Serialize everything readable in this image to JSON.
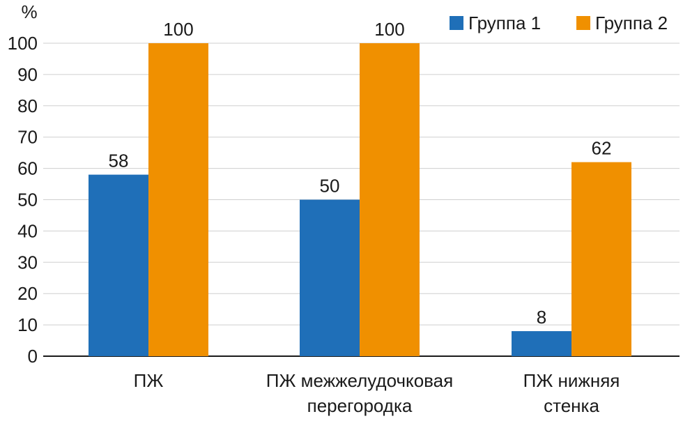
{
  "chart_data": {
    "type": "bar",
    "ylabel": "%",
    "ylim": [
      0,
      100
    ],
    "yticks": [
      0,
      10,
      20,
      30,
      40,
      50,
      60,
      70,
      80,
      90,
      100
    ],
    "grid": true,
    "legend_position": "top-right",
    "categories": [
      [
        "ПЖ"
      ],
      [
        "ПЖ межжелудочковая",
        "перегородка"
      ],
      [
        "ПЖ нижняя",
        "стенка"
      ]
    ],
    "series": [
      {
        "name": "Группа 1",
        "color": "#1f6fb8",
        "values": [
          58,
          50,
          8
        ]
      },
      {
        "name": "Группа 2",
        "color": "#f09000",
        "values": [
          100,
          100,
          62
        ]
      }
    ]
  }
}
